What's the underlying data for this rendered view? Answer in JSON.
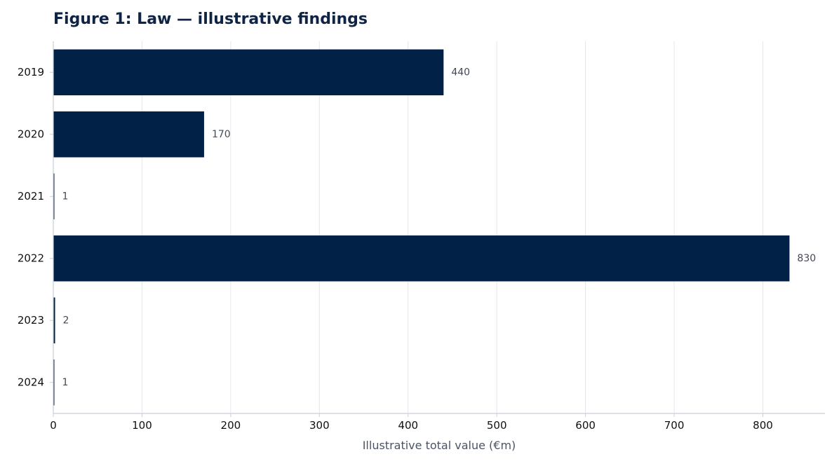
{
  "chart_data": {
    "type": "bar",
    "orientation": "horizontal",
    "title": "Figure 1: Law — illustrative findings",
    "xlabel": "Illustrative total value (€m)",
    "ylabel": "",
    "categories": [
      "2019",
      "2020",
      "2021",
      "2022",
      "2023",
      "2024"
    ],
    "values": [
      440,
      170,
      1,
      830,
      2,
      1
    ],
    "value_labels": [
      "440",
      "170",
      "1",
      "830",
      "2",
      "1"
    ],
    "xlim": [
      0,
      870
    ],
    "xticks": [
      0,
      100,
      200,
      300,
      400,
      500,
      600,
      700,
      800
    ],
    "xtick_labels": [
      "0",
      "100",
      "200",
      "300",
      "400",
      "500",
      "600",
      "700",
      "800"
    ],
    "grid": "vertical",
    "legend": "none",
    "colors": {
      "bar": "#012147",
      "grid": "#e3e6ea",
      "axis": "#c9ced6",
      "title": "#0f2444"
    }
  }
}
